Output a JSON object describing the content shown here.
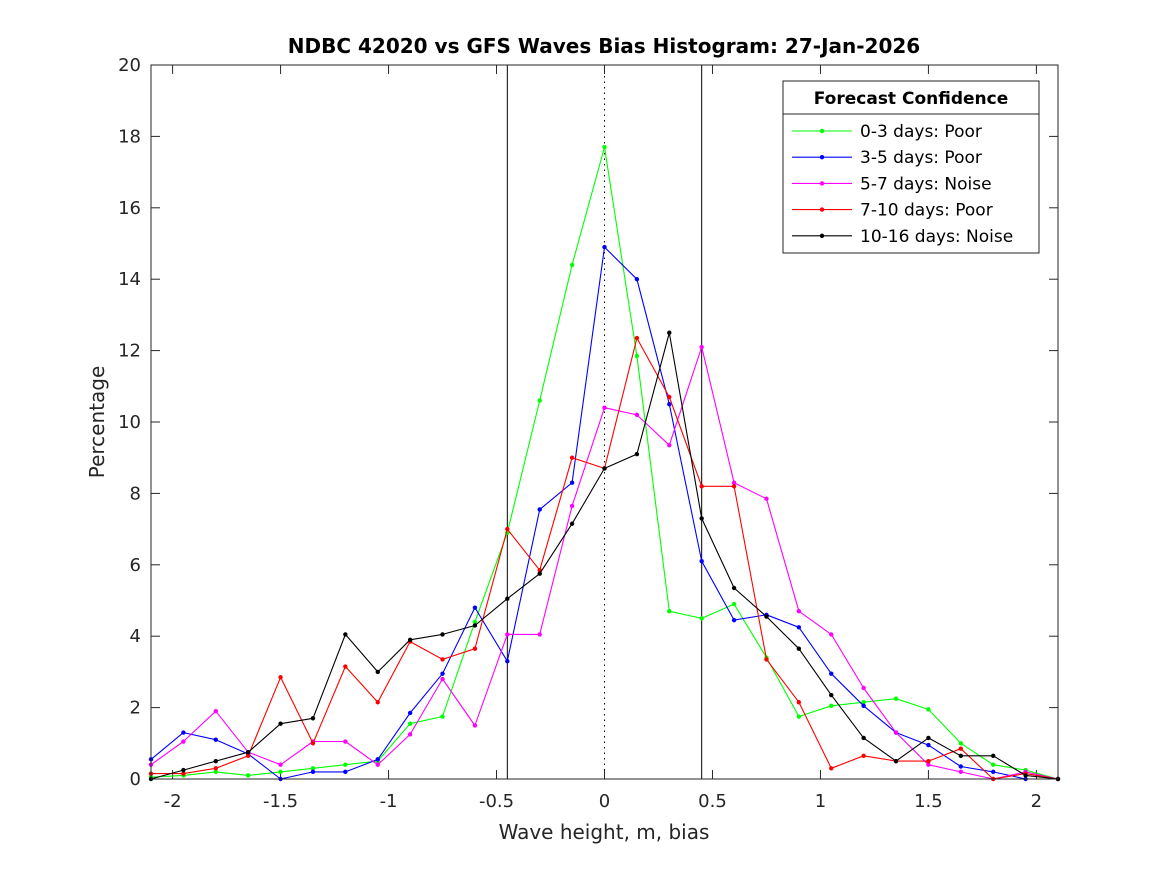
{
  "chart_data": {
    "type": "line",
    "title": "NDBC 42020 vs GFS Waves Bias Histogram: 27-Jan-2026",
    "xlabel": "Wave height, m, bias",
    "ylabel": "Percentage",
    "xlim": [
      -2.1,
      2.1
    ],
    "ylim": [
      0,
      20
    ],
    "xticks": [
      -2,
      -1.5,
      -1,
      -0.5,
      0,
      0.5,
      1,
      1.5,
      2
    ],
    "xtick_labels": [
      "-2",
      "-1.5",
      "-1",
      "-0.5",
      "0",
      "0.5",
      "1",
      "1.5",
      "2"
    ],
    "yticks": [
      0,
      2,
      4,
      6,
      8,
      10,
      12,
      14,
      16,
      18,
      20
    ],
    "ytick_labels": [
      "0",
      "2",
      "4",
      "6",
      "8",
      "10",
      "12",
      "14",
      "16",
      "18",
      "20"
    ],
    "vertical_lines": [
      {
        "x": -0.45,
        "style": "solid"
      },
      {
        "x": 0,
        "style": "dotted"
      },
      {
        "x": 0.45,
        "style": "solid"
      }
    ],
    "legend": {
      "title": "Forecast Confidence",
      "position": "top-right"
    },
    "x": [
      -2.1,
      -1.95,
      -1.8,
      -1.65,
      -1.5,
      -1.35,
      -1.2,
      -1.05,
      -0.9,
      -0.75,
      -0.6,
      -0.45,
      -0.3,
      -0.15,
      0,
      0.15,
      0.3,
      0.45,
      0.6,
      0.75,
      0.9,
      1.05,
      1.2,
      1.35,
      1.5,
      1.65,
      1.8,
      1.95,
      2.1
    ],
    "series": [
      {
        "name": "0-3 days: Poor",
        "color": "#00ff00",
        "values": [
          0.05,
          0.1,
          0.2,
          0.1,
          0.2,
          0.3,
          0.4,
          0.5,
          1.55,
          1.75,
          4.4,
          6.9,
          10.6,
          14.4,
          17.7,
          11.85,
          4.7,
          4.5,
          4.9,
          3.4,
          1.75,
          2.05,
          2.15,
          2.25,
          1.95,
          1.0,
          0.4,
          0.25,
          0.0
        ]
      },
      {
        "name": "3-5 days: Poor",
        "color": "#0000ff",
        "values": [
          0.55,
          1.3,
          1.1,
          0.7,
          0.0,
          0.2,
          0.2,
          0.55,
          1.85,
          2.95,
          4.8,
          3.3,
          7.55,
          8.3,
          14.9,
          14.0,
          10.5,
          6.1,
          4.45,
          4.6,
          4.25,
          2.95,
          2.05,
          1.3,
          0.95,
          0.35,
          0.2,
          0.0,
          0.0
        ]
      },
      {
        "name": "5-7 days: Noise",
        "color": "#ff00ff",
        "values": [
          0.4,
          1.05,
          1.9,
          0.75,
          0.4,
          1.05,
          1.05,
          0.4,
          1.25,
          2.8,
          1.5,
          4.05,
          4.05,
          7.65,
          10.4,
          10.2,
          9.35,
          12.1,
          8.3,
          7.85,
          4.7,
          4.05,
          2.55,
          1.3,
          0.4,
          0.2,
          0.0,
          0.2,
          0.0
        ]
      },
      {
        "name": "7-10 days: Poor",
        "color": "#ff0000",
        "values": [
          0.15,
          0.15,
          0.3,
          0.65,
          2.85,
          1.0,
          3.15,
          2.15,
          3.85,
          3.35,
          3.65,
          7.0,
          5.85,
          9.0,
          8.7,
          12.35,
          10.7,
          8.2,
          8.2,
          3.35,
          2.15,
          0.3,
          0.65,
          0.5,
          0.5,
          0.85,
          0.0,
          0.15,
          0.0
        ]
      },
      {
        "name": "10-16 days: Noise",
        "color": "#000000",
        "values": [
          0.0,
          0.25,
          0.5,
          0.75,
          1.55,
          1.7,
          4.05,
          3.0,
          3.9,
          4.05,
          4.3,
          5.05,
          5.75,
          7.15,
          8.7,
          9.1,
          12.5,
          7.3,
          5.35,
          4.55,
          3.65,
          2.35,
          1.15,
          0.5,
          1.15,
          0.65,
          0.65,
          0.1,
          0.0
        ]
      }
    ]
  }
}
